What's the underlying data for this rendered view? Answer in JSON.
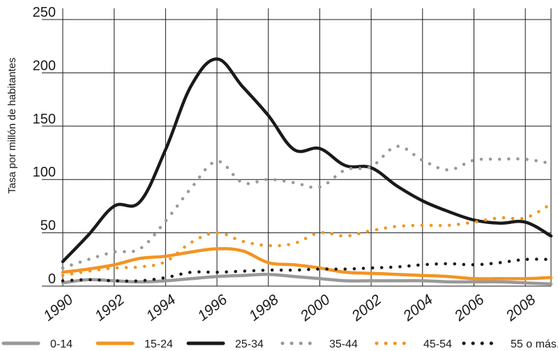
{
  "chart_data": {
    "type": "line",
    "ylabel": "Tasa por millón de habitantes",
    "ylim": [
      0,
      250
    ],
    "yticks": [
      0,
      50,
      100,
      150,
      200,
      250
    ],
    "xlim": [
      1990,
      2009
    ],
    "xticks": [
      1990,
      1992,
      1994,
      1996,
      1998,
      2000,
      2002,
      2004,
      2006,
      2008
    ],
    "grid": true,
    "legend_position": "bottom",
    "x": [
      1990,
      1991,
      1992,
      1993,
      1994,
      1995,
      1996,
      1997,
      1998,
      1999,
      2000,
      2001,
      2002,
      2003,
      2004,
      2005,
      2006,
      2007,
      2008,
      2009
    ],
    "series": [
      {
        "name": "0-14",
        "color": "#999999",
        "style": "solid",
        "values": [
          3,
          6,
          5,
          4,
          5,
          7,
          9,
          10,
          11,
          9,
          7,
          5,
          5,
          5,
          5,
          4,
          4,
          4,
          3,
          2
        ]
      },
      {
        "name": "15-24",
        "color": "#f39422",
        "style": "solid",
        "values": [
          13,
          16,
          20,
          26,
          28,
          32,
          35,
          33,
          22,
          20,
          17,
          13,
          12,
          11,
          10,
          9,
          7,
          7,
          7,
          8
        ]
      },
      {
        "name": "25-34",
        "color": "#1a1a1a",
        "style": "solid",
        "values": [
          23,
          48,
          75,
          79,
          128,
          188,
          213,
          187,
          160,
          128,
          129,
          113,
          111,
          94,
          80,
          70,
          62,
          59,
          60,
          47
        ]
      },
      {
        "name": "35-44",
        "color": "#999999",
        "style": "dotted",
        "values": [
          17,
          25,
          32,
          35,
          61,
          92,
          117,
          97,
          100,
          97,
          93,
          109,
          112,
          131,
          118,
          109,
          118,
          119,
          119,
          115
        ]
      },
      {
        "name": "45-54",
        "color": "#f39422",
        "style": "dotted",
        "values": [
          10,
          14,
          17,
          18,
          23,
          41,
          50,
          42,
          38,
          40,
          50,
          47,
          52,
          56,
          57,
          57,
          60,
          64,
          64,
          77
        ]
      },
      {
        "name": "55 o más.",
        "color": "#1a1a1a",
        "style": "dotted",
        "values": [
          5,
          6,
          5,
          5,
          8,
          13,
          13,
          14,
          15,
          15,
          16,
          16,
          17,
          18,
          20,
          21,
          20,
          22,
          25,
          25
        ]
      }
    ]
  }
}
